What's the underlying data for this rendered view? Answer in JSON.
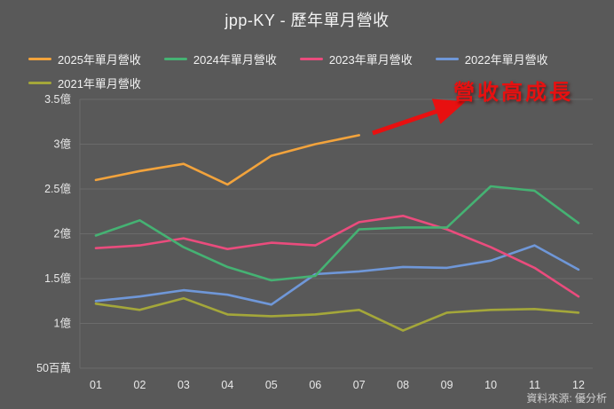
{
  "title": "jpp-KY - 歷年單月營收",
  "annotation": "營收高成長",
  "source": "資料來源: 優分析",
  "colors": {
    "background": "#595959",
    "gridline": "#6b6b6b",
    "text": "#f2f2f2",
    "annotation_red": "#e81010",
    "series_2025": "#f2a33c",
    "series_2024": "#45b273",
    "series_2023": "#ea4c7d",
    "series_2022": "#6f97d8",
    "series_2021": "#a4a73a"
  },
  "chart_data": {
    "type": "line",
    "title": "jpp-KY - 歷年單月營收",
    "x": [
      "01",
      "02",
      "03",
      "04",
      "05",
      "06",
      "07",
      "08",
      "09",
      "10",
      "11",
      "12"
    ],
    "unit": "億",
    "series": [
      {
        "name": "2025年單月營收",
        "color": "#f2a33c",
        "values": [
          2.6,
          2.7,
          2.78,
          2.55,
          2.87,
          3.0,
          3.1
        ]
      },
      {
        "name": "2024年單月營收",
        "color": "#45b273",
        "values": [
          1.98,
          2.15,
          1.85,
          1.63,
          1.48,
          1.53,
          2.05,
          2.07,
          2.07,
          2.53,
          2.48,
          2.12
        ]
      },
      {
        "name": "2023年單月營收",
        "color": "#ea4c7d",
        "values": [
          1.84,
          1.87,
          1.95,
          1.83,
          1.9,
          1.87,
          2.13,
          2.2,
          2.05,
          1.85,
          1.62,
          1.3
        ]
      },
      {
        "name": "2022年單月營收",
        "color": "#6f97d8",
        "values": [
          1.25,
          1.3,
          1.37,
          1.32,
          1.21,
          1.55,
          1.58,
          1.63,
          1.62,
          1.7,
          1.87,
          1.6
        ]
      },
      {
        "name": "2021年單月營收",
        "color": "#a4a73a",
        "values": [
          1.22,
          1.15,
          1.28,
          1.1,
          1.08,
          1.1,
          1.15,
          0.92,
          1.12,
          1.15,
          1.16,
          1.12
        ]
      }
    ],
    "y_tick_labels": [
      "3.5億",
      "3億",
      "2.5億",
      "2億",
      "1.5億",
      "1億",
      "50百萬"
    ],
    "y_tick_values": [
      3.5,
      3.0,
      2.5,
      2.0,
      1.5,
      1.0,
      0.5
    ],
    "ylim": [
      0.5,
      3.5
    ],
    "grid": true,
    "legend_position": "top"
  }
}
